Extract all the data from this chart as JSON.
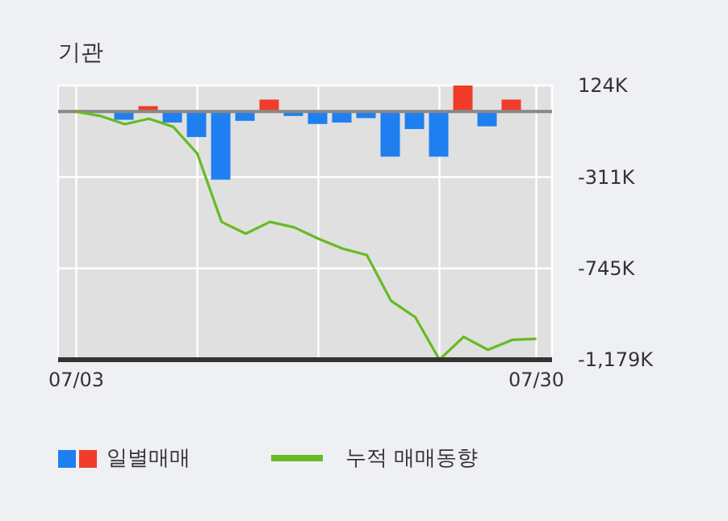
{
  "chart_data": {
    "type": "bar",
    "title": "기관",
    "categories": [
      "07/03",
      null,
      null,
      null,
      null,
      null,
      null,
      null,
      null,
      null,
      null,
      null,
      null,
      null,
      null,
      null,
      null,
      null,
      null,
      "07/30"
    ],
    "series": [
      {
        "name": "일별매매",
        "color": "#1f7ff0",
        "colors": [
          "#1f7ff0",
          "#1f7ff0",
          "#1f7ff0",
          "#f03c28",
          "#1f7ff0",
          "#1f7ff0",
          "#1f7ff0",
          "#1f7ff0",
          "#f03c28",
          "#1f7ff0",
          "#1f7ff0",
          "#1f7ff0",
          "#1f7ff0",
          "#1f7ff0",
          "#1f7ff0",
          "#1f7ff0",
          "#f03c28",
          "#1f7ff0",
          "#f03c28",
          "#f03c28"
        ],
        "values": [
          0,
          null,
          -39000,
          26000,
          -52000,
          -121000,
          -323000,
          -44000,
          57000,
          -21000,
          -59000,
          -52000,
          -31000,
          -214000,
          -83000,
          -214000,
          124000,
          -70000,
          57000,
          null
        ]
      },
      {
        "name": "누적 매매동향",
        "type": "line",
        "color": "#66bb22",
        "values": [
          0,
          -21000,
          -60000,
          -34000,
          -72000,
          -200000,
          -524000,
          -580000,
          -524000,
          -550000,
          -604000,
          -651000,
          -682000,
          -899000,
          -977000,
          -1179000,
          -1070000,
          -1132000,
          -1085000,
          -1080000
        ]
      }
    ],
    "ylim": [
      -1179000,
      124000
    ],
    "yticks": [
      {
        "value": 124000,
        "label": "124K"
      },
      {
        "value": -311000,
        "label": "-311K"
      },
      {
        "value": -745000,
        "label": "-745K"
      },
      {
        "value": -1179000,
        "label": "-1,179K"
      }
    ],
    "ref_lines": [
      {
        "axis": "y",
        "value": 0,
        "color": "#888888"
      }
    ],
    "grid": true,
    "legend": "bottom",
    "marker": "none",
    "line_style": "solid"
  }
}
